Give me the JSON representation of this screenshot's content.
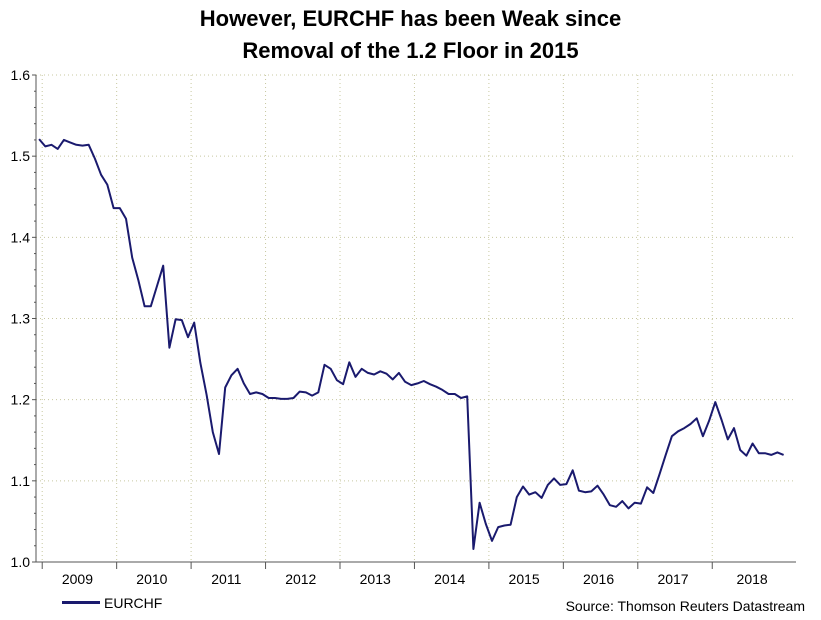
{
  "title_line1": "However, EURCHF has been Weak since",
  "title_line2": "Removal of the 1.2 Floor in 2015",
  "source": "Source: Thomson Reuters Datastream",
  "chart_data": {
    "type": "line",
    "title": "However, EURCHF has been Weak since Removal of the 1.2 Floor in 2015",
    "xlabel": "",
    "ylabel": "",
    "ylim": [
      1.0,
      1.6
    ],
    "yticks": [
      "1.0",
      "1.1",
      "1.2",
      "1.3",
      "1.4",
      "1.5",
      "1.6"
    ],
    "xticks": [
      "2009",
      "2010",
      "2011",
      "2012",
      "2013",
      "2014",
      "2015",
      "2016",
      "2017",
      "2018"
    ],
    "grid": true,
    "legend_position": "bottom-left",
    "series": [
      {
        "name": "EURCHF",
        "color": "#1a1a6e",
        "x": [
          "2008-12",
          "2009-01",
          "2009-02",
          "2009-03",
          "2009-04",
          "2009-05",
          "2009-06",
          "2009-07",
          "2009-08",
          "2009-09",
          "2009-10",
          "2009-11",
          "2009-12",
          "2010-01",
          "2010-02",
          "2010-03",
          "2010-04",
          "2010-05",
          "2010-06",
          "2010-07",
          "2010-08",
          "2010-09",
          "2010-10",
          "2010-11",
          "2010-12",
          "2011-01",
          "2011-02",
          "2011-03",
          "2011-04",
          "2011-05",
          "2011-06",
          "2011-07",
          "2011-08",
          "2011-09",
          "2011-10",
          "2011-11",
          "2011-12",
          "2012-01",
          "2012-02",
          "2012-03",
          "2012-04",
          "2012-05",
          "2012-06",
          "2012-07",
          "2012-08",
          "2012-09",
          "2012-10",
          "2012-11",
          "2012-12",
          "2013-01",
          "2013-02",
          "2013-03",
          "2013-04",
          "2013-05",
          "2013-06",
          "2013-07",
          "2013-08",
          "2013-09",
          "2013-10",
          "2013-11",
          "2013-12",
          "2014-01",
          "2014-02",
          "2014-03",
          "2014-04",
          "2014-05",
          "2014-06",
          "2014-07",
          "2014-08",
          "2014-09",
          "2014-10",
          "2014-11",
          "2014-12",
          "2015-01",
          "2015-02",
          "2015-03",
          "2015-04",
          "2015-05",
          "2015-06",
          "2015-07",
          "2015-08",
          "2015-09",
          "2015-10",
          "2015-11",
          "2015-12",
          "2016-01",
          "2016-02",
          "2016-03",
          "2016-04",
          "2016-05",
          "2016-06",
          "2016-07",
          "2016-08",
          "2016-09",
          "2016-10",
          "2016-11",
          "2016-12",
          "2017-01",
          "2017-02",
          "2017-03",
          "2017-04",
          "2017-05",
          "2017-06",
          "2017-07",
          "2017-08",
          "2017-09",
          "2017-10",
          "2017-11",
          "2017-12",
          "2018-01",
          "2018-02",
          "2018-03",
          "2018-04",
          "2018-05",
          "2018-06",
          "2018-07",
          "2018-08",
          "2018-09",
          "2018-10",
          "2018-11",
          "2018-12"
        ],
        "values": [
          1.521,
          1.512,
          1.514,
          1.509,
          1.52,
          1.517,
          1.514,
          1.513,
          1.514,
          1.497,
          1.477,
          1.465,
          1.436,
          1.436,
          1.423,
          1.375,
          1.347,
          1.315,
          1.315,
          1.34,
          1.365,
          1.264,
          1.299,
          1.298,
          1.277,
          1.295,
          1.245,
          1.206,
          1.16,
          1.133,
          1.215,
          1.23,
          1.238,
          1.22,
          1.207,
          1.209,
          1.207,
          1.202,
          1.202,
          1.201,
          1.201,
          1.202,
          1.21,
          1.209,
          1.205,
          1.209,
          1.243,
          1.238,
          1.224,
          1.219,
          1.246,
          1.228,
          1.238,
          1.233,
          1.231,
          1.235,
          1.232,
          1.225,
          1.233,
          1.222,
          1.218,
          1.22,
          1.223,
          1.219,
          1.216,
          1.212,
          1.207,
          1.207,
          1.202,
          1.204,
          1.016,
          1.073,
          1.047,
          1.026,
          1.043,
          1.045,
          1.046,
          1.08,
          1.093,
          1.083,
          1.086,
          1.079,
          1.095,
          1.103,
          1.095,
          1.096,
          1.113,
          1.088,
          1.086,
          1.087,
          1.094,
          1.083,
          1.07,
          1.068,
          1.075,
          1.066,
          1.073,
          1.072,
          1.092,
          1.085,
          1.108,
          1.132,
          1.155,
          1.161,
          1.165,
          1.17,
          1.177,
          1.155,
          1.174,
          1.197,
          1.175,
          1.151,
          1.165,
          1.138,
          1.131,
          1.146,
          1.134,
          1.134,
          1.132,
          1.135,
          1.132
        ]
      }
    ]
  }
}
